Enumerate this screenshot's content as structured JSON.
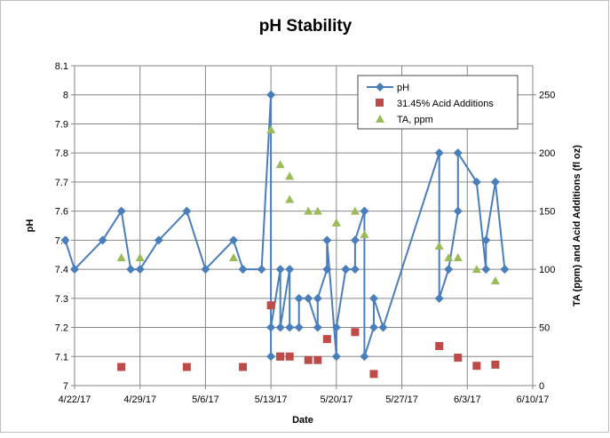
{
  "chart_data": {
    "type": "scatter",
    "title": "pH Stability",
    "xlabel": "Date",
    "ylabel": "pH",
    "y2label": "TA (ppm) and Acid Additions (fl oz)",
    "xlim": [
      "2017-04-22",
      "2017-06-10"
    ],
    "ylim": [
      7.0,
      8.1
    ],
    "y2lim": [
      0,
      275
    ],
    "x_ticks": [
      "4/22/17",
      "4/29/17",
      "5/6/17",
      "5/13/17",
      "5/20/17",
      "5/27/17",
      "6/3/17",
      "6/10/17"
    ],
    "y_ticks": [
      "7",
      "7.1",
      "7.2",
      "7.3",
      "7.4",
      "7.5",
      "7.6",
      "7.7",
      "7.8",
      "7.9",
      "8",
      "8.1"
    ],
    "y2_ticks": [
      "0",
      "50",
      "100",
      "150",
      "200",
      "250"
    ],
    "grid": "vertical and horizontal",
    "legend": "top-right inside plot",
    "series": [
      {
        "name": "pH",
        "axis": "left",
        "style": "line-with-diamond-markers",
        "color": "#4a7ebb",
        "points": [
          [
            "2017-04-21",
            7.5
          ],
          [
            "2017-04-22",
            7.4
          ],
          [
            "2017-04-25",
            7.5
          ],
          [
            "2017-04-27",
            7.6
          ],
          [
            "2017-04-28",
            7.4
          ],
          [
            "2017-04-29",
            7.4
          ],
          [
            "2017-05-01",
            7.5
          ],
          [
            "2017-05-04",
            7.6
          ],
          [
            "2017-05-06",
            7.4
          ],
          [
            "2017-05-09",
            7.5
          ],
          [
            "2017-05-10",
            7.4
          ],
          [
            "2017-05-12",
            7.4
          ],
          [
            "2017-05-13",
            8.0
          ],
          [
            "2017-05-13",
            7.1
          ],
          [
            "2017-05-13",
            7.2
          ],
          [
            "2017-05-14",
            7.4
          ],
          [
            "2017-05-14",
            7.2
          ],
          [
            "2017-05-15",
            7.4
          ],
          [
            "2017-05-15",
            7.2
          ],
          [
            "2017-05-16",
            7.2
          ],
          [
            "2017-05-16",
            7.3
          ],
          [
            "2017-05-17",
            7.3
          ],
          [
            "2017-05-18",
            7.2
          ],
          [
            "2017-05-18",
            7.3
          ],
          [
            "2017-05-19",
            7.4
          ],
          [
            "2017-05-19",
            7.5
          ],
          [
            "2017-05-20",
            7.1
          ],
          [
            "2017-05-20",
            7.2
          ],
          [
            "2017-05-21",
            7.4
          ],
          [
            "2017-05-21",
            7.4
          ],
          [
            "2017-05-22",
            7.4
          ],
          [
            "2017-05-22",
            7.5
          ],
          [
            "2017-05-23",
            7.6
          ],
          [
            "2017-05-23",
            7.1
          ],
          [
            "2017-05-24",
            7.2
          ],
          [
            "2017-05-24",
            7.3
          ],
          [
            "2017-05-25",
            7.2
          ],
          [
            "2017-05-31",
            7.8
          ],
          [
            "2017-05-31",
            7.3
          ],
          [
            "2017-06-01",
            7.4
          ],
          [
            "2017-06-02",
            7.6
          ],
          [
            "2017-06-02",
            7.8
          ],
          [
            "2017-06-04",
            7.7
          ],
          [
            "2017-06-05",
            7.4
          ],
          [
            "2017-06-05",
            7.5
          ],
          [
            "2017-06-06",
            7.7
          ],
          [
            "2017-06-07",
            7.4
          ]
        ]
      },
      {
        "name": "31.45% Acid Additions",
        "axis": "right",
        "style": "square-markers",
        "color": "#be4b48",
        "points": [
          [
            "2017-04-27",
            16
          ],
          [
            "2017-05-04",
            16
          ],
          [
            "2017-05-10",
            16
          ],
          [
            "2017-05-13",
            69
          ],
          [
            "2017-05-14",
            25
          ],
          [
            "2017-05-14",
            25
          ],
          [
            "2017-05-15",
            25
          ],
          [
            "2017-05-17",
            22
          ],
          [
            "2017-05-18",
            22
          ],
          [
            "2017-05-19",
            40
          ],
          [
            "2017-05-22",
            46
          ],
          [
            "2017-05-24",
            10
          ],
          [
            "2017-05-31",
            34
          ],
          [
            "2017-06-02",
            24
          ],
          [
            "2017-06-04",
            17
          ],
          [
            "2017-06-06",
            18
          ]
        ]
      },
      {
        "name": "TA, ppm",
        "axis": "right",
        "style": "triangle-markers",
        "color": "#9bbb59",
        "points": [
          [
            "2017-04-27",
            110
          ],
          [
            "2017-04-29",
            110
          ],
          [
            "2017-05-09",
            110
          ],
          [
            "2017-05-13",
            220
          ],
          [
            "2017-05-14",
            190
          ],
          [
            "2017-05-15",
            180
          ],
          [
            "2017-05-15",
            160
          ],
          [
            "2017-05-17",
            150
          ],
          [
            "2017-05-18",
            150
          ],
          [
            "2017-05-20",
            140
          ],
          [
            "2017-05-20",
            140
          ],
          [
            "2017-05-22",
            150
          ],
          [
            "2017-05-23",
            130
          ],
          [
            "2017-05-31",
            120
          ],
          [
            "2017-06-01",
            110
          ],
          [
            "2017-06-02",
            110
          ],
          [
            "2017-06-04",
            100
          ],
          [
            "2017-06-06",
            90
          ]
        ]
      }
    ]
  }
}
